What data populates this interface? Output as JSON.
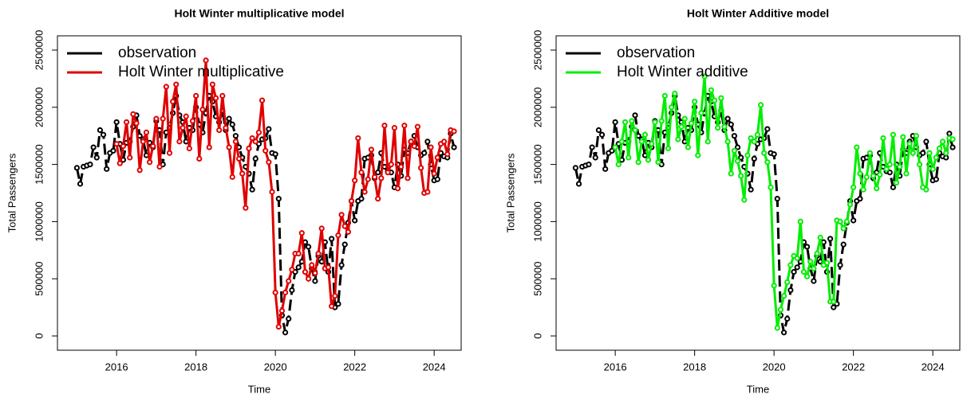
{
  "chart_data": [
    {
      "type": "line",
      "title": "Holt Winter multiplicative model",
      "x_label": "Time",
      "y_label": "Total Passengers",
      "xlim": [
        2014.51,
        2024.68
      ],
      "ylim": [
        -125000,
        2625000
      ],
      "xticks": [
        2016,
        2018,
        2020,
        2022,
        2024
      ],
      "yticks": [
        0,
        500000,
        1000000,
        1500000,
        2000000,
        2500000
      ],
      "legend": "top-left",
      "x": [
        2015,
        2015.0833,
        2015.1667,
        2015.25,
        2015.3333,
        2015.4167,
        2015.5,
        2015.5833,
        2015.6667,
        2015.75,
        2015.8333,
        2015.9167,
        2016,
        2016.0833,
        2016.1667,
        2016.25,
        2016.3333,
        2016.4167,
        2016.5,
        2016.5833,
        2016.6667,
        2016.75,
        2016.8333,
        2016.9167,
        2017,
        2017.0833,
        2017.1667,
        2017.25,
        2017.3333,
        2017.4167,
        2017.5,
        2017.5833,
        2017.6667,
        2017.75,
        2017.8333,
        2017.9167,
        2018,
        2018.0833,
        2018.1667,
        2018.25,
        2018.3333,
        2018.4167,
        2018.5,
        2018.5833,
        2018.6667,
        2018.75,
        2018.8333,
        2018.9167,
        2019,
        2019.0833,
        2019.1667,
        2019.25,
        2019.3333,
        2019.4167,
        2019.5,
        2019.5833,
        2019.6667,
        2019.75,
        2019.8333,
        2019.9167,
        2020,
        2020.0833,
        2020.1667,
        2020.25,
        2020.3333,
        2020.4167,
        2020.5,
        2020.5833,
        2020.6667,
        2020.75,
        2020.8333,
        2020.9167,
        2021,
        2021.0833,
        2021.1667,
        2021.25,
        2021.3333,
        2021.4167,
        2021.5,
        2021.5833,
        2021.6667,
        2021.75,
        2021.8333,
        2021.9167,
        2022,
        2022.0833,
        2022.1667,
        2022.25,
        2022.3333,
        2022.4167,
        2022.5,
        2022.5833,
        2022.6667,
        2022.75,
        2022.8333,
        2022.9167,
        2023,
        2023.0833,
        2023.1667,
        2023.25,
        2023.3333,
        2023.4167,
        2023.5,
        2023.5833,
        2023.6667,
        2023.75,
        2023.8333,
        2023.9167,
        2024,
        2024.0833,
        2024.1667,
        2024.25,
        2024.3333,
        2024.4167,
        2024.5
      ],
      "series": [
        {
          "name": "observation",
          "color": "#000000",
          "line_style": "dashed",
          "values": [
            1470000,
            1330000,
            1480000,
            1490000,
            1500000,
            1650000,
            1560000,
            1800000,
            1760000,
            1460000,
            1600000,
            1620000,
            1870000,
            1680000,
            1540000,
            1690000,
            1700000,
            1830000,
            1930000,
            1750000,
            1720000,
            1580000,
            1690000,
            1650000,
            1880000,
            1800000,
            1500000,
            1780000,
            1820000,
            1950000,
            2100000,
            1930000,
            1870000,
            1700000,
            1820000,
            1800000,
            2000000,
            1850000,
            1780000,
            1950000,
            2100000,
            2050000,
            1920000,
            1870000,
            1970000,
            1800000,
            1900000,
            1850000,
            1750000,
            1650000,
            1560000,
            1480000,
            1420000,
            1280000,
            1550000,
            1680000,
            1720000,
            1730000,
            1810000,
            1600000,
            1590000,
            1200000,
            180000,
            30000,
            150000,
            400000,
            560000,
            600000,
            650000,
            820000,
            780000,
            590000,
            480000,
            700000,
            650000,
            820000,
            560000,
            850000,
            250000,
            280000,
            620000,
            800000,
            990000,
            1180000,
            1010000,
            1180000,
            1200000,
            1550000,
            1560000,
            1580000,
            1380000,
            1430000,
            1600000,
            1480000,
            1440000,
            1430000,
            1300000,
            1500000,
            1400000,
            1630000,
            1600000,
            1700000,
            1750000,
            1650000,
            1580000,
            1600000,
            1700000,
            1500000,
            1360000,
            1370000,
            1600000,
            1570000,
            1560000,
            1770000,
            1650000
          ]
        },
        {
          "name": "Holt Winter multiplicative",
          "color": "#e00000",
          "line_style": "solid",
          "values": [
            null,
            null,
            null,
            null,
            null,
            null,
            null,
            null,
            null,
            null,
            null,
            null,
            1680000,
            1510000,
            1660000,
            1870000,
            1560000,
            1940000,
            1860000,
            1450000,
            1700000,
            1780000,
            1520000,
            1660000,
            1900000,
            1480000,
            1900000,
            2180000,
            1600000,
            2050000,
            2200000,
            1700000,
            1820000,
            1920000,
            1640000,
            1880000,
            2100000,
            1550000,
            1980000,
            2410000,
            1650000,
            2200000,
            2080000,
            1800000,
            2100000,
            1820000,
            1650000,
            1390000,
            1700000,
            1550000,
            1420000,
            1120000,
            1640000,
            1730000,
            1700000,
            1780000,
            2060000,
            1620000,
            1520000,
            1260000,
            380000,
            80000,
            220000,
            380000,
            480000,
            580000,
            720000,
            720000,
            900000,
            560000,
            500000,
            620000,
            550000,
            720000,
            940000,
            590000,
            600000,
            260000,
            350000,
            880000,
            1060000,
            960000,
            910000,
            1180000,
            1360000,
            1730000,
            1430000,
            1260000,
            1370000,
            1630000,
            1390000,
            1200000,
            1380000,
            1840000,
            1430000,
            1500000,
            1820000,
            1290000,
            1480000,
            1840000,
            1380000,
            1700000,
            1660000,
            1830000,
            1470000,
            1250000,
            1260000,
            1650000,
            1420000,
            1560000,
            1680000,
            1700000,
            1590000,
            1800000,
            1790000
          ]
        }
      ]
    },
    {
      "type": "line",
      "title": "Holt Winter Additive model",
      "x_label": "Time",
      "y_label": "Total Passengers",
      "xlim": [
        2014.51,
        2024.68
      ],
      "ylim": [
        -125000,
        2625000
      ],
      "xticks": [
        2016,
        2018,
        2020,
        2022,
        2024
      ],
      "yticks": [
        0,
        500000,
        1000000,
        1500000,
        2000000,
        2500000
      ],
      "legend": "top-left",
      "x": [
        2015,
        2015.0833,
        2015.1667,
        2015.25,
        2015.3333,
        2015.4167,
        2015.5,
        2015.5833,
        2015.6667,
        2015.75,
        2015.8333,
        2015.9167,
        2016,
        2016.0833,
        2016.1667,
        2016.25,
        2016.3333,
        2016.4167,
        2016.5,
        2016.5833,
        2016.6667,
        2016.75,
        2016.8333,
        2016.9167,
        2017,
        2017.0833,
        2017.1667,
        2017.25,
        2017.3333,
        2017.4167,
        2017.5,
        2017.5833,
        2017.6667,
        2017.75,
        2017.8333,
        2017.9167,
        2018,
        2018.0833,
        2018.1667,
        2018.25,
        2018.3333,
        2018.4167,
        2018.5,
        2018.5833,
        2018.6667,
        2018.75,
        2018.8333,
        2018.9167,
        2019,
        2019.0833,
        2019.1667,
        2019.25,
        2019.3333,
        2019.4167,
        2019.5,
        2019.5833,
        2019.6667,
        2019.75,
        2019.8333,
        2019.9167,
        2020,
        2020.0833,
        2020.1667,
        2020.25,
        2020.3333,
        2020.4167,
        2020.5,
        2020.5833,
        2020.6667,
        2020.75,
        2020.8333,
        2020.9167,
        2021,
        2021.0833,
        2021.1667,
        2021.25,
        2021.3333,
        2021.4167,
        2021.5,
        2021.5833,
        2021.6667,
        2021.75,
        2021.8333,
        2021.9167,
        2022,
        2022.0833,
        2022.1667,
        2022.25,
        2022.3333,
        2022.4167,
        2022.5,
        2022.5833,
        2022.6667,
        2022.75,
        2022.8333,
        2022.9167,
        2023,
        2023.0833,
        2023.1667,
        2023.25,
        2023.3333,
        2023.4167,
        2023.5,
        2023.5833,
        2023.6667,
        2023.75,
        2023.8333,
        2023.9167,
        2024,
        2024.0833,
        2024.1667,
        2024.25,
        2024.3333,
        2024.4167,
        2024.5
      ],
      "series": [
        {
          "name": "observation",
          "color": "#000000",
          "line_style": "dashed",
          "values": [
            1470000,
            1330000,
            1480000,
            1490000,
            1500000,
            1650000,
            1560000,
            1800000,
            1760000,
            1460000,
            1600000,
            1620000,
            1870000,
            1680000,
            1540000,
            1690000,
            1700000,
            1830000,
            1930000,
            1750000,
            1720000,
            1580000,
            1690000,
            1650000,
            1880000,
            1800000,
            1500000,
            1780000,
            1820000,
            1950000,
            2100000,
            1930000,
            1870000,
            1700000,
            1820000,
            1800000,
            2000000,
            1850000,
            1780000,
            1950000,
            2100000,
            2050000,
            1920000,
            1870000,
            1970000,
            1800000,
            1900000,
            1850000,
            1750000,
            1650000,
            1560000,
            1480000,
            1420000,
            1280000,
            1550000,
            1680000,
            1720000,
            1730000,
            1810000,
            1600000,
            1590000,
            1200000,
            180000,
            30000,
            150000,
            400000,
            560000,
            600000,
            650000,
            820000,
            780000,
            590000,
            480000,
            700000,
            650000,
            820000,
            560000,
            850000,
            250000,
            280000,
            620000,
            800000,
            990000,
            1180000,
            1010000,
            1180000,
            1200000,
            1550000,
            1560000,
            1580000,
            1380000,
            1430000,
            1600000,
            1480000,
            1440000,
            1430000,
            1300000,
            1500000,
            1400000,
            1630000,
            1600000,
            1700000,
            1750000,
            1650000,
            1580000,
            1600000,
            1700000,
            1500000,
            1360000,
            1370000,
            1600000,
            1570000,
            1560000,
            1770000,
            1650000
          ]
        },
        {
          "name": "Holt Winter additive",
          "color": "#00ee00",
          "line_style": "solid",
          "values": [
            null,
            null,
            null,
            null,
            null,
            null,
            null,
            null,
            null,
            null,
            null,
            null,
            1650000,
            1500000,
            1700000,
            1870000,
            1560000,
            1880000,
            1800000,
            1520000,
            1700000,
            1760000,
            1540000,
            1680000,
            1870000,
            1520000,
            1880000,
            2100000,
            1640000,
            2000000,
            2120000,
            1720000,
            1830000,
            1900000,
            1650000,
            1860000,
            2050000,
            1580000,
            1950000,
            2270000,
            1700000,
            2150000,
            2060000,
            1820000,
            2080000,
            1830000,
            1700000,
            1420000,
            1620000,
            1530000,
            1400000,
            1190000,
            1580000,
            1730000,
            1700000,
            1760000,
            2020000,
            1600000,
            1520000,
            1300000,
            440000,
            70000,
            230000,
            350000,
            470000,
            620000,
            700000,
            680000,
            1000000,
            560000,
            520000,
            650000,
            590000,
            720000,
            860000,
            620000,
            640000,
            300000,
            300000,
            1010000,
            1000000,
            940000,
            1000000,
            1150000,
            1300000,
            1650000,
            1420000,
            1280000,
            1390000,
            1600000,
            1400000,
            1290000,
            1410000,
            1730000,
            1460000,
            1500000,
            1760000,
            1340000,
            1480000,
            1740000,
            1420000,
            1680000,
            1600000,
            1750000,
            1500000,
            1300000,
            1280000,
            1600000,
            1460000,
            1560000,
            1640000,
            1700000,
            1600000,
            1730000,
            1720000
          ]
        }
      ]
    }
  ]
}
